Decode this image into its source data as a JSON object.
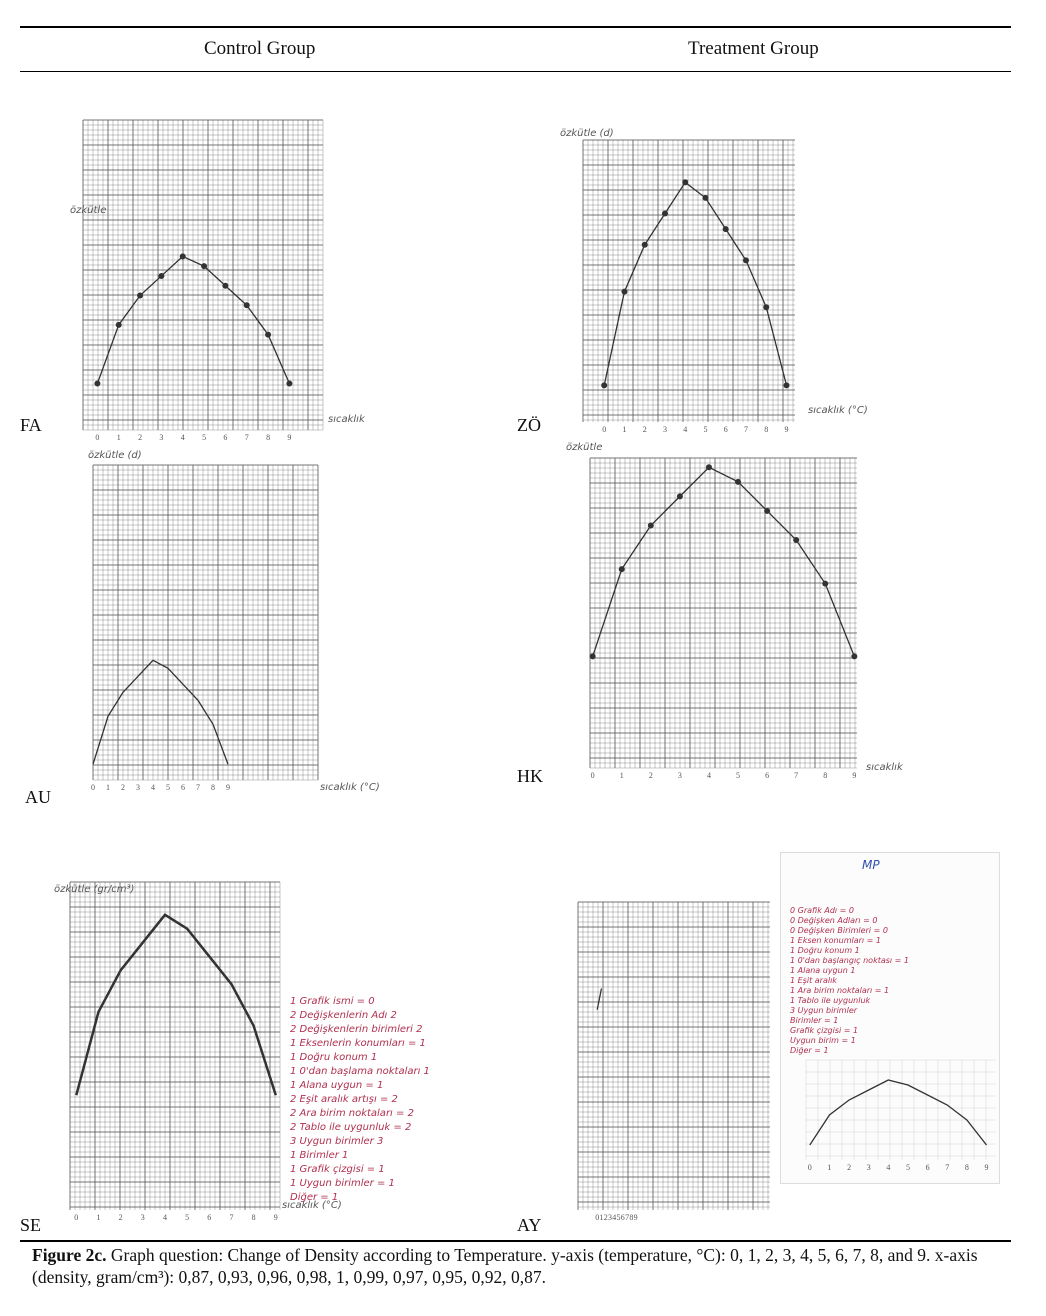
{
  "table": {
    "columns": [
      "Control Group",
      "Treatment Group"
    ]
  },
  "panels": [
    {
      "id": "FA",
      "group": "Control Group",
      "y_label": "özkütle",
      "x_label": "sıcaklık"
    },
    {
      "id": "ZÖ",
      "group": "Treatment Group",
      "y_label": "özkütle (d)",
      "x_label": "sıcaklık (°C)"
    },
    {
      "id": "AU",
      "group": "Control Group",
      "y_label": "özkütle (d)",
      "x_label": "sıcaklık (°C)"
    },
    {
      "id": "HK",
      "group": "Treatment Group",
      "y_label": "özkütle",
      "x_label": "sıcaklık"
    },
    {
      "id": "SE",
      "group": "Control Group",
      "y_label": "özkütle (gr/cm³)",
      "x_label": "sıcaklık (°C)"
    },
    {
      "id": "AY",
      "group": "Treatment Group",
      "y_label": "",
      "x_label": ""
    }
  ],
  "notes": {
    "SE": [
      "1 Grafik ismi = 0",
      "2 Değişkenlerin Adı 2",
      "2 Değişkenlerin birimleri 2",
      "1 Eksenlerin konumları = 1",
      "1 Doğru konum 1",
      "1 0'dan başlama noktaları 1",
      "1 Alana uygun = 1",
      "2 Eşit aralık artışı = 2",
      "2 Ara birim noktaları = 2",
      "2 Tablo ile uygunluk = 2",
      "3 Uygun birimler 3",
      "1 Birimler 1",
      "1 Grafik çizgisi = 1",
      "1 Uygun birimler = 1",
      "Diğer = 1"
    ],
    "AY": [
      "0 Grafik Adı = 0",
      "0 Değişken Adları = 0",
      "0 Değişken Birimleri = 0",
      "1 Eksen konumları = 1",
      "1 Doğru konum 1",
      "1 0'dan başlangıç noktası = 1",
      "1 Alana uygun 1",
      "1 Eşit aralık",
      "1 Ara birim noktaları = 1",
      "1 Tablo ile uygunluk",
      "3 Uygun birimler",
      "Birimler = 1",
      "Grafik çizgisi = 1",
      "Uygun birim = 1",
      "Diğer = 1"
    ],
    "AY_mark": "MP"
  },
  "chart_data": {
    "type": "line",
    "x": [
      0,
      1,
      2,
      3,
      4,
      5,
      6,
      7,
      8,
      9
    ],
    "values": [
      0.87,
      0.93,
      0.96,
      0.98,
      1,
      0.99,
      0.97,
      0.95,
      0.92,
      0.87
    ],
    "xlabel": "sıcaklık (°C)",
    "ylabel": "özkütle",
    "ylim": [
      0.86,
      1.0
    ]
  },
  "caption": {
    "label": "Figure 2c.",
    "text": " Graph question: Change of Density according to Temperature. y-axis (temperature, °C): 0, 1, 2, 3, 4, 5, 6, 7, 8, and 9. x-axis (density, gram/cm³): 0,87, 0,93, 0,96, 0,98, 1, 0,99, 0,97, 0,95, 0,92, 0,87."
  },
  "colors": {
    "grid": "#555555",
    "ink": "#333333",
    "red_ink": "#b03050",
    "blue_ink": "#3050b0"
  }
}
